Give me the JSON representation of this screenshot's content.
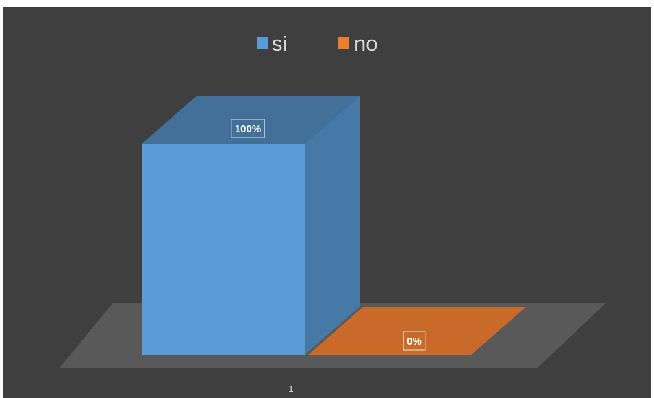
{
  "chart_data": {
    "type": "bar",
    "variant": "3d-clustered-column",
    "categories": [
      "1"
    ],
    "series": [
      {
        "name": "si",
        "values": [
          100
        ],
        "data_labels": [
          "100%"
        ],
        "color": "#5b9bd5"
      },
      {
        "name": "no",
        "values": [
          0
        ],
        "data_labels": [
          "0%"
        ],
        "color": "#ed7d31"
      }
    ],
    "ylim": [
      0,
      100
    ],
    "grid": false,
    "legend_position": "top",
    "background": "#3f3f3f",
    "floor_color": "#595959",
    "text_color": "#d9d9d9"
  }
}
